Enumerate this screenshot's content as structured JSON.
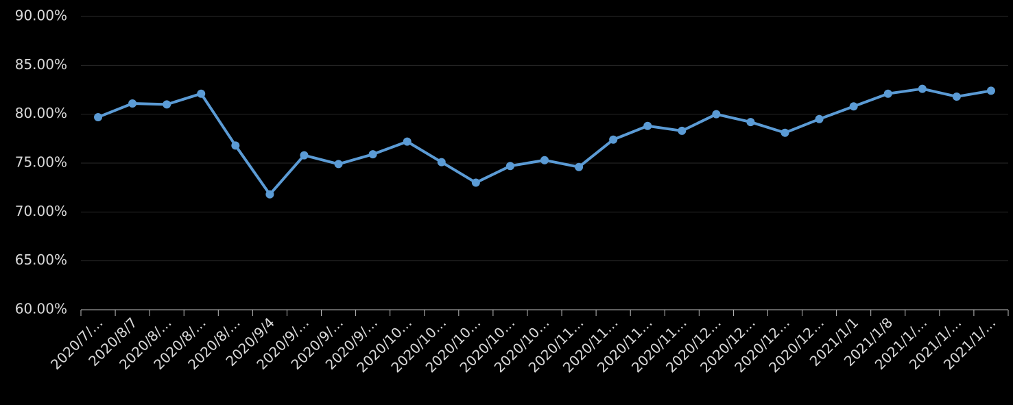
{
  "chart_data": {
    "type": "line",
    "categories": [
      "2020/7/…",
      "2020/8/7",
      "2020/8/…",
      "2020/8/…",
      "2020/8/…",
      "2020/9/4",
      "2020/9/…",
      "2020/9/…",
      "2020/9/…",
      "2020/10…",
      "2020/10…",
      "2020/10…",
      "2020/10…",
      "2020/10…",
      "2020/11…",
      "2020/11…",
      "2020/11…",
      "2020/11…",
      "2020/12…",
      "2020/12…",
      "2020/12…",
      "2020/12…",
      "2021/1/1",
      "2021/1/8",
      "2021/1/…",
      "2021/1/…",
      "2021/1/…"
    ],
    "series": [
      {
        "color": "#5b9bd5",
        "values": [
          79.7,
          81.1,
          81.0,
          82.1,
          76.8,
          71.8,
          75.8,
          74.9,
          75.9,
          77.2,
          75.1,
          73.0,
          74.7,
          75.3,
          74.6,
          77.4,
          78.8,
          78.3,
          80.0,
          79.2,
          78.1,
          79.5,
          80.8,
          82.1,
          82.6,
          81.8,
          82.4
        ]
      }
    ],
    "ylim": [
      60,
      90
    ],
    "yticks": [
      {
        "value": 60,
        "label": "60.00%"
      },
      {
        "value": 65,
        "label": "65.00%"
      },
      {
        "value": 70,
        "label": "70.00%"
      },
      {
        "value": 75,
        "label": "75.00%"
      },
      {
        "value": 80,
        "label": "80.00%"
      },
      {
        "value": 85,
        "label": "85.00%"
      },
      {
        "value": 90,
        "label": "90.00%"
      }
    ],
    "grid": true
  }
}
